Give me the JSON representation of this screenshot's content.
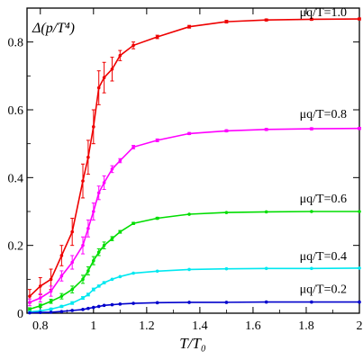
{
  "chart_data": {
    "type": "line",
    "title": "Δ(p/T⁴)",
    "xlabel": "T/T₀",
    "ylabel": "",
    "xlim": [
      0.75,
      2.0
    ],
    "ylim": [
      0,
      0.9
    ],
    "grid": false,
    "legend": "inline labels on the right",
    "x_ticks": [
      0.8,
      1,
      1.2,
      1.4,
      1.6,
      1.8,
      2
    ],
    "x_tick_labels": [
      "0.8",
      "1",
      "1.2",
      "1.4",
      "1.6",
      "1.8",
      "2"
    ],
    "y_ticks": [
      0,
      0.2,
      0.4,
      0.6,
      0.8
    ],
    "y_tick_labels": [
      "0",
      "0.2",
      "0.4",
      "0.6",
      "0.8"
    ],
    "series": [
      {
        "name": "μq/T=1.0",
        "color": "#ee0000",
        "x": [
          0.76,
          0.8,
          0.84,
          0.88,
          0.92,
          0.96,
          0.98,
          1.0,
          1.02,
          1.04,
          1.07,
          1.1,
          1.15,
          1.24,
          1.36,
          1.5,
          1.65,
          1.82,
          2.0
        ],
        "y": [
          0.05,
          0.08,
          0.1,
          0.17,
          0.24,
          0.39,
          0.46,
          0.55,
          0.665,
          0.695,
          0.72,
          0.76,
          0.79,
          0.815,
          0.845,
          0.86,
          0.865,
          0.867,
          0.868
        ],
        "err": [
          0.02,
          0.025,
          0.03,
          0.03,
          0.04,
          0.05,
          0.05,
          0.05,
          0.05,
          0.045,
          0.035,
          0.015,
          0.01,
          0.005,
          0.004,
          0.004,
          0.003,
          0.003,
          0.003
        ]
      },
      {
        "name": "μq/T=0.8",
        "color": "#ff00ff",
        "x": [
          0.76,
          0.8,
          0.84,
          0.88,
          0.92,
          0.96,
          0.98,
          1.0,
          1.02,
          1.04,
          1.07,
          1.1,
          1.15,
          1.24,
          1.36,
          1.5,
          1.65,
          1.82,
          2.0
        ],
        "y": [
          0.032,
          0.045,
          0.065,
          0.11,
          0.15,
          0.2,
          0.25,
          0.3,
          0.355,
          0.385,
          0.425,
          0.45,
          0.49,
          0.51,
          0.53,
          0.538,
          0.542,
          0.544,
          0.545
        ],
        "err": [
          0.01,
          0.012,
          0.015,
          0.015,
          0.02,
          0.025,
          0.025,
          0.025,
          0.02,
          0.02,
          0.01,
          0.006,
          0.005,
          0.004,
          0.003,
          0.003,
          0.003,
          0.003,
          0.003
        ]
      },
      {
        "name": "μq/T=0.6",
        "color": "#00dd00",
        "x": [
          0.76,
          0.8,
          0.84,
          0.88,
          0.92,
          0.96,
          0.98,
          1.0,
          1.02,
          1.04,
          1.07,
          1.1,
          1.15,
          1.24,
          1.36,
          1.5,
          1.65,
          1.82,
          2.0
        ],
        "y": [
          0.012,
          0.022,
          0.035,
          0.05,
          0.07,
          0.1,
          0.125,
          0.155,
          0.18,
          0.2,
          0.22,
          0.24,
          0.265,
          0.28,
          0.292,
          0.297,
          0.299,
          0.3,
          0.3
        ],
        "err": [
          0.004,
          0.005,
          0.006,
          0.008,
          0.01,
          0.012,
          0.012,
          0.012,
          0.01,
          0.01,
          0.006,
          0.004,
          0.003,
          0.003,
          0.002,
          0.002,
          0.002,
          0.002,
          0.002
        ]
      },
      {
        "name": "μq/T=0.4",
        "color": "#00e8f0",
        "x": [
          0.76,
          0.8,
          0.84,
          0.88,
          0.92,
          0.96,
          0.98,
          1.0,
          1.02,
          1.04,
          1.07,
          1.1,
          1.15,
          1.24,
          1.36,
          1.5,
          1.65,
          1.82,
          2.0
        ],
        "y": [
          0.004,
          0.007,
          0.012,
          0.02,
          0.03,
          0.045,
          0.055,
          0.07,
          0.08,
          0.09,
          0.1,
          0.108,
          0.118,
          0.124,
          0.129,
          0.131,
          0.132,
          0.132,
          0.133
        ],
        "err": [
          0.002,
          0.002,
          0.003,
          0.003,
          0.004,
          0.004,
          0.004,
          0.004,
          0.003,
          0.003,
          0.002,
          0.002,
          0.002,
          0.001,
          0.001,
          0.001,
          0.001,
          0.001,
          0.001
        ]
      },
      {
        "name": "μq/T=0.2",
        "color": "#0000cc",
        "x": [
          0.76,
          0.8,
          0.84,
          0.88,
          0.92,
          0.96,
          0.98,
          1.0,
          1.02,
          1.04,
          1.07,
          1.1,
          1.15,
          1.24,
          1.36,
          1.5,
          1.65,
          1.82,
          2.0
        ],
        "y": [
          0.001,
          0.002,
          0.003,
          0.005,
          0.008,
          0.011,
          0.014,
          0.017,
          0.02,
          0.023,
          0.025,
          0.027,
          0.029,
          0.031,
          0.032,
          0.032,
          0.033,
          0.033,
          0.033
        ],
        "err": [
          0.001,
          0.001,
          0.001,
          0.001,
          0.001,
          0.001,
          0.001,
          0.001,
          0.001,
          0.001,
          0.001,
          0.001,
          0.001,
          0.001,
          0.001,
          0.001,
          0.001,
          0.001,
          0.001
        ]
      }
    ]
  }
}
